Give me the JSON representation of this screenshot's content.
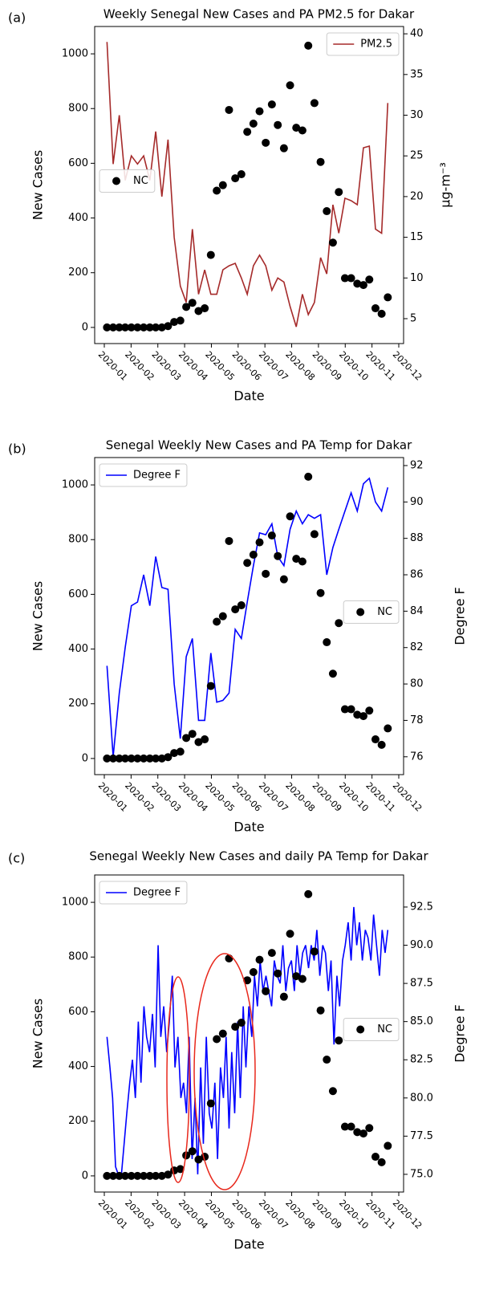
{
  "chart_data": [
    {
      "type": "combo",
      "panel_label": "(a)",
      "title": "Weekly Senegal New Cases and PA PM2.5 for Dakar",
      "xlabel": "Date",
      "ylabel": "New Cases",
      "y2label": "μg-m⁻³",
      "xlim": [
        -0.36,
        11.18
      ],
      "xticks": [
        {
          "value": 0,
          "label": "2020-01"
        },
        {
          "value": 1,
          "label": "2020-02"
        },
        {
          "value": 2,
          "label": "2020-03"
        },
        {
          "value": 3,
          "label": "2020-04"
        },
        {
          "value": 4,
          "label": "2020-05"
        },
        {
          "value": 5,
          "label": "2020-06"
        },
        {
          "value": 6,
          "label": "2020-07"
        },
        {
          "value": 7,
          "label": "2020-08"
        },
        {
          "value": 8,
          "label": "2020-09"
        },
        {
          "value": 9,
          "label": "2020-10"
        },
        {
          "value": 10,
          "label": "2020-11"
        },
        {
          "value": 11,
          "label": "2020-12"
        }
      ],
      "ylim": [
        -59,
        1100
      ],
      "yticks": [
        0,
        200,
        400,
        600,
        800,
        1000
      ],
      "y2lim": [
        1.94,
        40.9
      ],
      "y2ticks": [
        5,
        10,
        15,
        20,
        25,
        30,
        35,
        40
      ],
      "x": [
        0.1,
        0.33,
        0.56,
        0.78,
        1.01,
        1.24,
        1.47,
        1.7,
        1.92,
        2.15,
        2.38,
        2.61,
        2.84,
        3.06,
        3.29,
        3.52,
        3.75,
        3.98,
        4.2,
        4.43,
        4.66,
        4.89,
        5.12,
        5.34,
        5.57,
        5.8,
        6.03,
        6.26,
        6.48,
        6.71,
        6.94,
        7.17,
        7.4,
        7.62,
        7.85,
        8.08,
        8.31,
        8.54,
        8.76,
        8.99,
        9.22,
        9.45,
        9.68,
        9.9,
        10.13,
        10.36,
        10.59
      ],
      "series": [
        {
          "name": "NC",
          "type": "scatter",
          "color": "#000000",
          "legend": "center left",
          "values": [
            0,
            0,
            0,
            0,
            0,
            0,
            0,
            0,
            0,
            0,
            5,
            20,
            25,
            75,
            90,
            60,
            70,
            265,
            500,
            520,
            795,
            545,
            560,
            715,
            745,
            790,
            675,
            815,
            740,
            655,
            885,
            730,
            720,
            1030,
            820,
            605,
            425,
            310,
            495,
            180,
            180,
            160,
            155,
            175,
            70,
            50,
            110
          ]
        },
        {
          "name": "PM2.5",
          "type": "line",
          "axis": "y2",
          "color": "#a52a2a",
          "legend": "upper right",
          "values": [
            39,
            24,
            30,
            22,
            25,
            24,
            25,
            22,
            28,
            20,
            27,
            15,
            9,
            7,
            16,
            8,
            11,
            8,
            8,
            11,
            11.5,
            11.8,
            10,
            8,
            11.5,
            12.8,
            11.5,
            8.5,
            10,
            9.5,
            6.5,
            4,
            8,
            5.5,
            7,
            12.5,
            10.5,
            19,
            15.5,
            19.8,
            19.5,
            19,
            26,
            26.2,
            16,
            15.5,
            31.5
          ]
        }
      ]
    },
    {
      "type": "combo",
      "panel_label": "(b)",
      "title": "Senegal Weekly New Cases and PA Temp for Dakar",
      "xlabel": "Date",
      "ylabel": "New Cases",
      "y2label": "Degree F",
      "xlim": [
        -0.36,
        11.18
      ],
      "xticks": [
        {
          "value": 0,
          "label": "2020-01"
        },
        {
          "value": 1,
          "label": "2020-02"
        },
        {
          "value": 2,
          "label": "2020-03"
        },
        {
          "value": 3,
          "label": "2020-04"
        },
        {
          "value": 4,
          "label": "2020-05"
        },
        {
          "value": 5,
          "label": "2020-06"
        },
        {
          "value": 6,
          "label": "2020-07"
        },
        {
          "value": 7,
          "label": "2020-08"
        },
        {
          "value": 8,
          "label": "2020-09"
        },
        {
          "value": 9,
          "label": "2020-10"
        },
        {
          "value": 10,
          "label": "2020-11"
        },
        {
          "value": 11,
          "label": "2020-12"
        }
      ],
      "ylim": [
        -59,
        1100
      ],
      "yticks": [
        0,
        200,
        400,
        600,
        800,
        1000
      ],
      "y2lim": [
        75.02,
        92.44
      ],
      "y2ticks": [
        76,
        78,
        80,
        82,
        84,
        86,
        88,
        90,
        92
      ],
      "x": [
        0.1,
        0.33,
        0.56,
        0.78,
        1.01,
        1.24,
        1.47,
        1.7,
        1.92,
        2.15,
        2.38,
        2.61,
        2.84,
        3.06,
        3.29,
        3.52,
        3.75,
        3.98,
        4.2,
        4.43,
        4.66,
        4.89,
        5.12,
        5.34,
        5.57,
        5.8,
        6.03,
        6.26,
        6.48,
        6.71,
        6.94,
        7.17,
        7.4,
        7.62,
        7.85,
        8.08,
        8.31,
        8.54,
        8.76,
        8.99,
        9.22,
        9.45,
        9.68,
        9.9,
        10.13,
        10.36,
        10.59
      ],
      "series": [
        {
          "name": "NC",
          "type": "scatter",
          "color": "#000000",
          "legend": "center right",
          "values": [
            0,
            0,
            0,
            0,
            0,
            0,
            0,
            0,
            0,
            0,
            5,
            20,
            25,
            75,
            90,
            60,
            70,
            265,
            500,
            520,
            795,
            545,
            560,
            715,
            745,
            790,
            675,
            815,
            740,
            655,
            885,
            730,
            720,
            1030,
            820,
            605,
            425,
            310,
            495,
            180,
            180,
            160,
            155,
            175,
            70,
            50,
            110
          ]
        },
        {
          "name": "Degree F",
          "type": "line",
          "axis": "y2",
          "color": "#0000ff",
          "legend": "upper left",
          "values": [
            81,
            76,
            79.5,
            82,
            84.3,
            84.5,
            86,
            84.3,
            87,
            85.3,
            85.2,
            80,
            77,
            81.5,
            82.5,
            78,
            78,
            81.7,
            79,
            79.1,
            79.5,
            83,
            82.5,
            84.5,
            86.5,
            88.3,
            88.2,
            88.8,
            87,
            86.5,
            88.5,
            89.5,
            88.8,
            89.3,
            89.1,
            89.3,
            86,
            87.5,
            88.5,
            89.5,
            90.5,
            89.5,
            91,
            91.3,
            90,
            89.5,
            90.8
          ]
        }
      ]
    },
    {
      "type": "combo",
      "panel_label": "(c)",
      "title": "Senegal Weekly New Cases and daily PA Temp for Dakar",
      "xlabel": "Date",
      "ylabel": "New Cases",
      "y2label": "Degree F",
      "xlim": [
        -0.36,
        11.18
      ],
      "xticks": [
        {
          "value": 0,
          "label": "2020-01"
        },
        {
          "value": 1,
          "label": "2020-02"
        },
        {
          "value": 2,
          "label": "2020-03"
        },
        {
          "value": 3,
          "label": "2020-04"
        },
        {
          "value": 4,
          "label": "2020-05"
        },
        {
          "value": 5,
          "label": "2020-06"
        },
        {
          "value": 6,
          "label": "2020-07"
        },
        {
          "value": 7,
          "label": "2020-08"
        },
        {
          "value": 8,
          "label": "2020-09"
        },
        {
          "value": 9,
          "label": "2020-10"
        },
        {
          "value": 10,
          "label": "2020-11"
        },
        {
          "value": 11,
          "label": "2020-12"
        }
      ],
      "ylim": [
        -59,
        1100
      ],
      "yticks": [
        0,
        200,
        400,
        600,
        800,
        1000
      ],
      "y2lim": [
        73.84,
        94.6
      ],
      "y2ticks": [
        {
          "value": 75,
          "label": "75.0"
        },
        77.5,
        {
          "value": 80,
          "label": "80.0"
        },
        82.5,
        {
          "value": 85,
          "label": "85.0"
        },
        87.5,
        {
          "value": 90,
          "label": "90.0"
        },
        92.5
      ],
      "x": [
        0.1,
        0.33,
        0.56,
        0.78,
        1.01,
        1.24,
        1.47,
        1.7,
        1.92,
        2.15,
        2.38,
        2.61,
        2.84,
        3.06,
        3.29,
        3.52,
        3.75,
        3.98,
        4.2,
        4.43,
        4.66,
        4.89,
        5.12,
        5.34,
        5.57,
        5.8,
        6.03,
        6.26,
        6.48,
        6.71,
        6.94,
        7.17,
        7.4,
        7.62,
        7.85,
        8.08,
        8.31,
        8.54,
        8.76,
        8.99,
        9.22,
        9.45,
        9.68,
        9.9,
        10.13,
        10.36,
        10.59
      ],
      "series": [
        {
          "name": "NC",
          "type": "scatter",
          "color": "#000000",
          "legend": "center right",
          "values": [
            0,
            0,
            0,
            0,
            0,
            0,
            0,
            0,
            0,
            0,
            5,
            20,
            25,
            75,
            90,
            60,
            70,
            265,
            500,
            520,
            795,
            545,
            560,
            715,
            745,
            790,
            675,
            815,
            740,
            655,
            885,
            730,
            720,
            1030,
            820,
            605,
            425,
            310,
            495,
            180,
            180,
            160,
            155,
            175,
            70,
            50,
            110
          ]
        },
        {
          "name": "Degree F",
          "type": "line",
          "axis": "y2",
          "color": "#0000ff",
          "legend": "upper left",
          "x": [
            0.1,
            0.21,
            0.31,
            0.42,
            0.52,
            0.63,
            0.74,
            0.84,
            0.95,
            1.05,
            1.16,
            1.27,
            1.37,
            1.48,
            1.58,
            1.69,
            1.8,
            1.9,
            2.01,
            2.11,
            2.22,
            2.33,
            2.43,
            2.54,
            2.64,
            2.75,
            2.86,
            2.96,
            3.07,
            3.17,
            3.28,
            3.39,
            3.49,
            3.6,
            3.7,
            3.81,
            3.92,
            4.02,
            4.13,
            4.23,
            4.34,
            4.45,
            4.55,
            4.66,
            4.76,
            4.87,
            4.98,
            5.08,
            5.19,
            5.29,
            5.4,
            5.51,
            5.61,
            5.72,
            5.82,
            5.93,
            6.04,
            6.14,
            6.25,
            6.35,
            6.46,
            6.57,
            6.67,
            6.78,
            6.88,
            6.99,
            7.1,
            7.2,
            7.31,
            7.41,
            7.52,
            7.63,
            7.73,
            7.84,
            7.94,
            8.05,
            8.16,
            8.26,
            8.37,
            8.47,
            8.58,
            8.69,
            8.79,
            8.9,
            9.0,
            9.11,
            9.22,
            9.32,
            9.43,
            9.53,
            9.64,
            9.75,
            9.85,
            9.96,
            10.06,
            10.17,
            10.28,
            10.38,
            10.49,
            10.59
          ],
          "values": [
            84,
            82,
            80,
            75.5,
            75,
            74.8,
            77,
            79,
            81,
            82.5,
            80,
            85,
            81,
            86,
            84,
            83,
            85.5,
            82,
            90,
            84,
            86,
            83,
            85,
            88,
            82,
            84,
            80,
            81,
            79,
            84,
            76,
            80,
            75,
            82,
            77,
            84,
            79,
            78,
            81,
            76,
            82,
            80,
            84,
            78,
            83,
            79,
            85,
            80,
            86,
            82,
            86,
            84,
            88,
            86,
            89,
            87,
            88,
            87,
            86,
            89,
            88,
            87.5,
            90,
            87,
            88.5,
            89,
            87,
            90,
            88,
            89.5,
            90,
            88.5,
            90,
            89,
            91,
            88,
            90,
            89.5,
            87,
            89,
            83.5,
            88,
            86,
            89,
            90,
            91.5,
            89,
            92.5,
            90,
            91.5,
            89,
            91,
            90.5,
            89,
            92,
            90,
            88,
            91,
            89.5,
            91
          ]
        }
      ]
    }
  ]
}
